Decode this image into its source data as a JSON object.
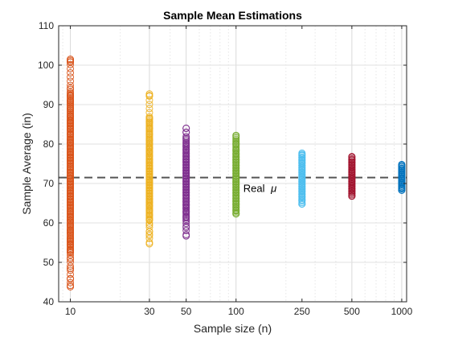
{
  "chart_data": {
    "type": "scatter",
    "title": "Sample Mean Estimations",
    "xlabel": "Sample size (n)",
    "ylabel": "Sample Average (in)",
    "x_scale": "log",
    "xlim": [
      8.5,
      1070
    ],
    "ylim": [
      40,
      110
    ],
    "x_ticks": [
      10,
      30,
      50,
      100,
      250,
      500,
      1000
    ],
    "x_tick_labels": [
      "10",
      "30",
      "50",
      "100",
      "250",
      "500",
      "1000"
    ],
    "y_ticks": [
      40,
      50,
      60,
      70,
      80,
      90,
      100,
      110
    ],
    "y_tick_labels": [
      "40",
      "50",
      "60",
      "70",
      "80",
      "90",
      "100",
      "110"
    ],
    "grid": true,
    "marker": "open-circle",
    "reference_line": {
      "y": 71.5,
      "style": "dashed",
      "color": "#555555",
      "label_prefix": "Real",
      "label_symbol": "μ"
    },
    "series": [
      {
        "x": 10,
        "color": "#D95319",
        "min": 43.8,
        "max": 101.5,
        "values": [
          43.8,
          45.8,
          48.5,
          52.5,
          53.2,
          54.5,
          55.3,
          56.0,
          57.5,
          58.2,
          59.5,
          60.6,
          61.5,
          62.3,
          63.0,
          63.8,
          64.5,
          65.2,
          66.0,
          66.8,
          67.5,
          68.2,
          69.0,
          69.8,
          70.5,
          71.2,
          72.0,
          72.8,
          73.5,
          74.2,
          75.0,
          75.8,
          76.5,
          77.3,
          78.0,
          78.8,
          79.5,
          80.3,
          81.2,
          82.5,
          83.8,
          84.5,
          85.3,
          86.0,
          87.0,
          89.0,
          91.0,
          92.2,
          100.8,
          101.5
        ]
      },
      {
        "x": 30,
        "color": "#EDB120",
        "min": 54.7,
        "max": 92.7,
        "values": [
          54.7,
          57.8,
          59.5,
          60.8,
          62.0,
          63.2,
          64.3,
          65.2,
          66.0,
          66.8,
          67.5,
          68.2,
          68.9,
          69.6,
          70.3,
          71.0,
          71.7,
          72.4,
          73.1,
          73.8,
          74.5,
          75.3,
          76.1,
          77.0,
          78.0,
          79.0,
          80.0,
          81.0,
          82.5,
          84.0,
          85.5,
          86.5,
          92.3,
          92.7
        ]
      },
      {
        "x": 50,
        "color": "#7E2F8E",
        "min": 56.7,
        "max": 84.0,
        "values": [
          56.7,
          60.5,
          61.5,
          62.8,
          63.8,
          64.6,
          65.4,
          66.2,
          67.0,
          67.7,
          68.4,
          69.1,
          69.8,
          70.5,
          71.2,
          71.9,
          72.6,
          73.3,
          74.0,
          74.7,
          75.4,
          76.1,
          76.9,
          77.7,
          78.6,
          79.5,
          80.4,
          81.5,
          83.0,
          84.0
        ]
      },
      {
        "x": 100,
        "color": "#77AC30",
        "min": 62.3,
        "max": 82.2,
        "values": [
          62.3,
          63.2,
          64.0,
          64.8,
          65.5,
          66.2,
          66.9,
          67.6,
          68.3,
          69.0,
          69.7,
          70.4,
          71.1,
          71.8,
          72.5,
          73.2,
          73.9,
          74.6,
          75.3,
          76.0,
          76.7,
          77.5,
          78.5,
          80.0,
          82.2
        ]
      },
      {
        "x": 250,
        "color": "#4DBEEE",
        "min": 64.8,
        "max": 77.7,
        "values": [
          64.8,
          65.8,
          66.6,
          67.3,
          68.0,
          68.6,
          69.2,
          69.8,
          70.4,
          71.0,
          71.6,
          72.2,
          72.8,
          73.4,
          74.0,
          74.6,
          75.2,
          75.9,
          76.6,
          77.2,
          77.7
        ]
      },
      {
        "x": 500,
        "color": "#A2142F",
        "min": 66.8,
        "max": 76.8,
        "values": [
          66.8,
          67.5,
          68.1,
          68.7,
          69.3,
          69.9,
          70.5,
          71.1,
          71.7,
          72.3,
          72.9,
          73.5,
          74.1,
          74.7,
          75.3,
          76.0,
          76.8
        ]
      },
      {
        "x": 1000,
        "color": "#0072BD",
        "min": 68.3,
        "max": 74.8,
        "values": [
          68.3,
          68.8,
          69.3,
          69.8,
          70.3,
          70.8,
          71.3,
          71.8,
          72.3,
          72.8,
          73.3,
          73.8,
          74.3,
          74.8
        ]
      }
    ]
  }
}
